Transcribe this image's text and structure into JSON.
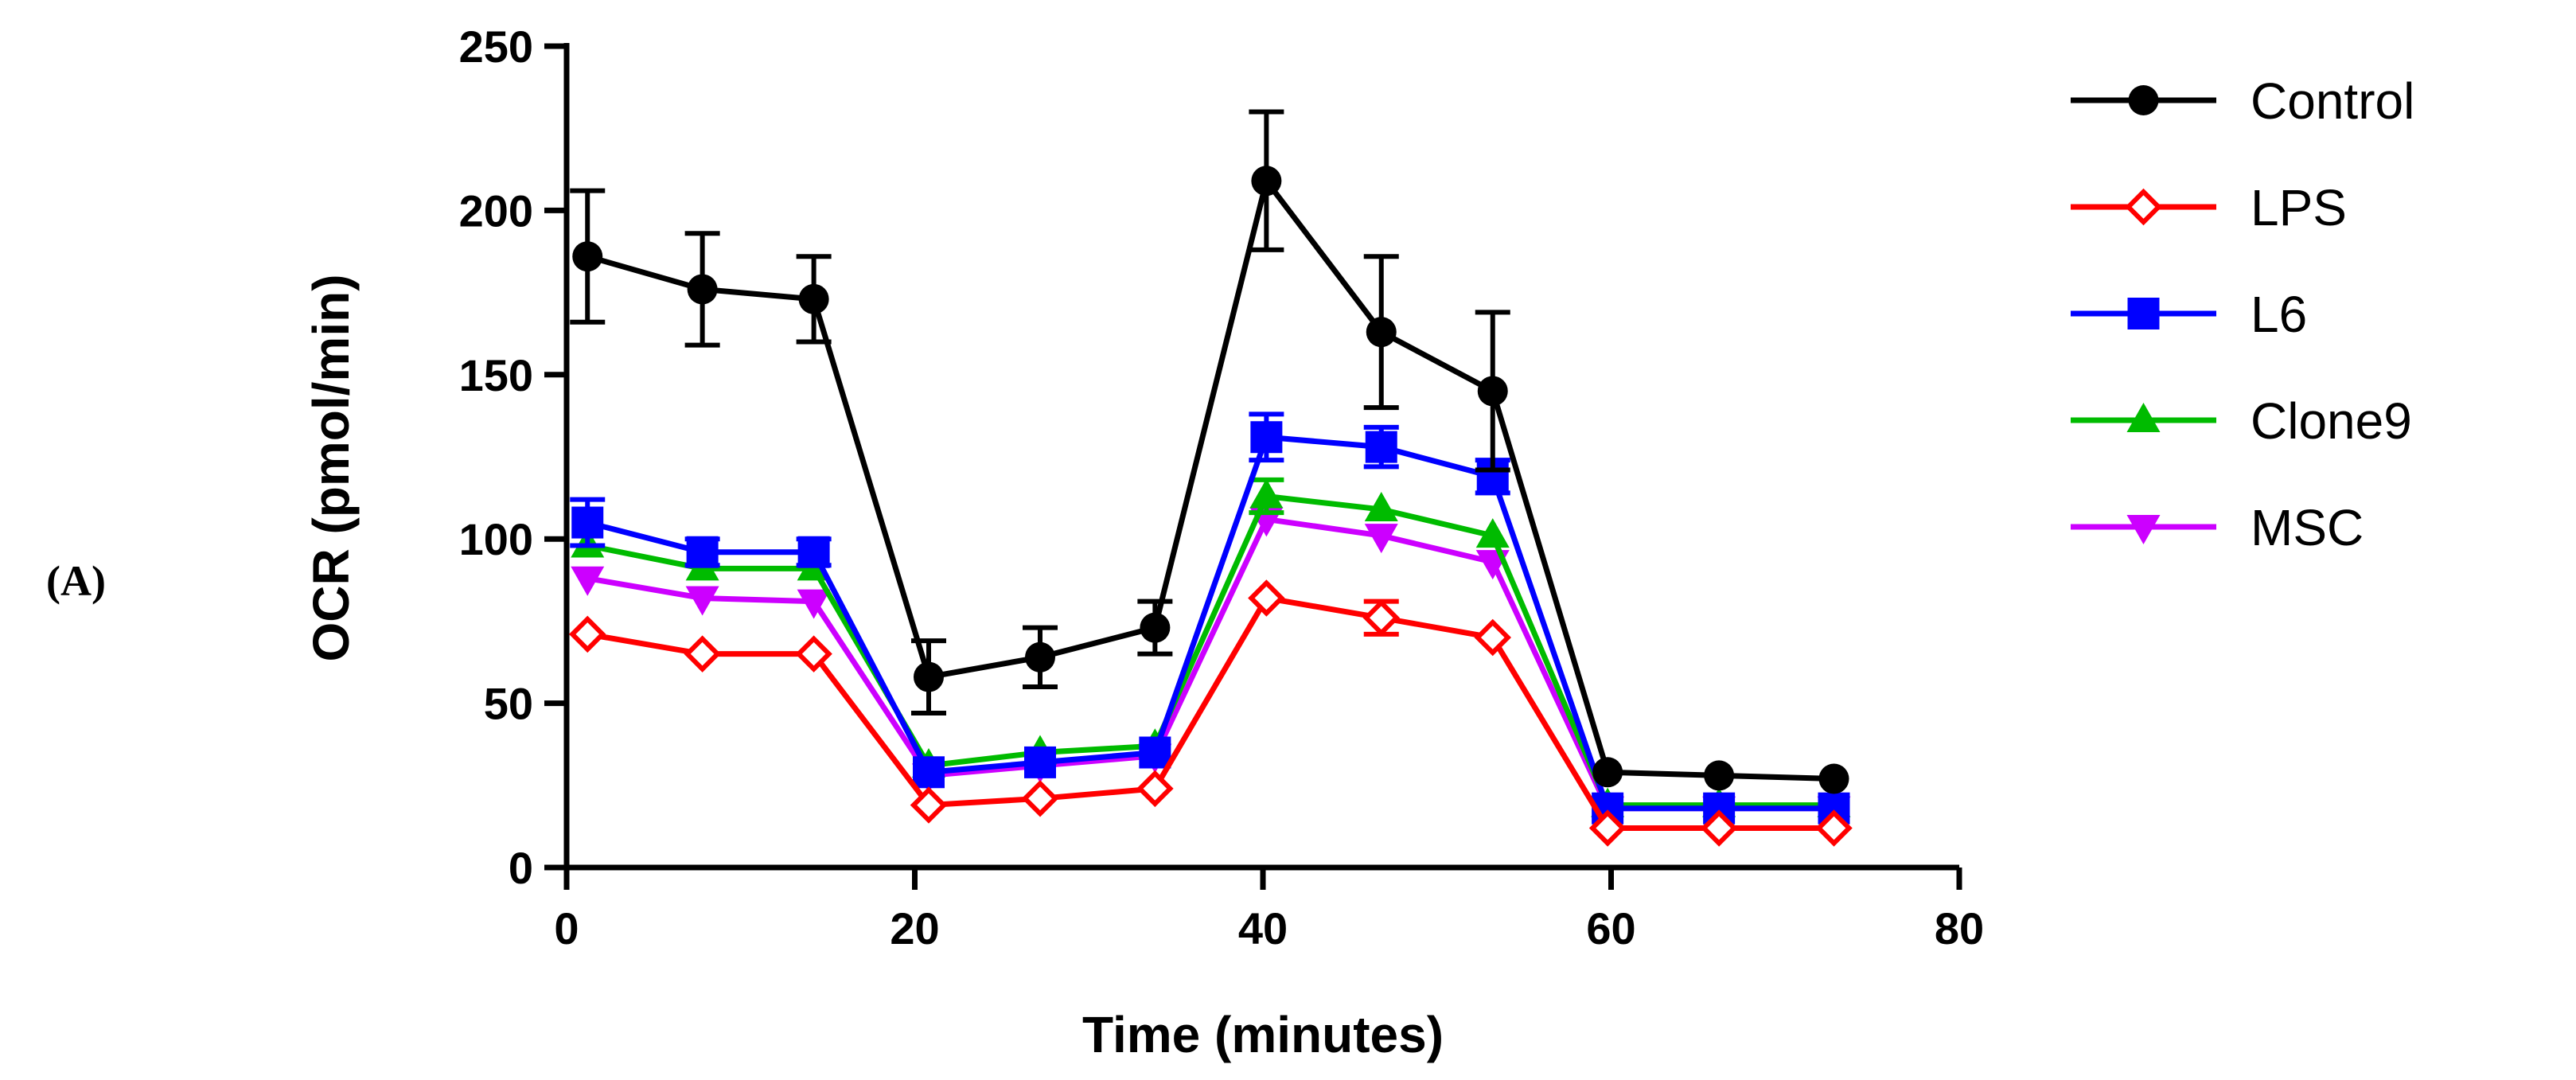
{
  "panel_label": "(A)",
  "chart_data": {
    "type": "line",
    "title": "",
    "xlabel": "Time (minutes)",
    "ylabel": "OCR (pmol/min)",
    "xlim": [
      0,
      80
    ],
    "ylim": [
      0,
      250
    ],
    "xticks": [
      0,
      20,
      40,
      60,
      80
    ],
    "yticks": [
      0,
      50,
      100,
      150,
      200,
      250
    ],
    "x": [
      1.2,
      7.8,
      14.2,
      20.8,
      27.2,
      33.8,
      40.2,
      46.8,
      53.2,
      59.8,
      66.2,
      72.8
    ],
    "legend_position": "right",
    "series": [
      {
        "name": "Control",
        "color": "#000000",
        "marker": "circle",
        "values": [
          186,
          176,
          173,
          58,
          64,
          73,
          209,
          163,
          145,
          29,
          28,
          27
        ],
        "errors": [
          20,
          17,
          13,
          11,
          9,
          8,
          21,
          23,
          24,
          0,
          0,
          0
        ]
      },
      {
        "name": "LPS",
        "color": "#ff0000",
        "marker": "diamond-open",
        "values": [
          71,
          65,
          65,
          19,
          21,
          24,
          82,
          76,
          70,
          12,
          12,
          12
        ],
        "errors": [
          0,
          0,
          0,
          0,
          0,
          0,
          0,
          5,
          0,
          0,
          0,
          0
        ]
      },
      {
        "name": "L6",
        "color": "#0000ff",
        "marker": "square",
        "values": [
          105,
          96,
          96,
          29,
          32,
          35,
          131,
          128,
          119,
          18,
          18,
          18
        ],
        "errors": [
          7,
          4,
          4,
          0,
          0,
          0,
          7,
          6,
          5,
          0,
          0,
          0
        ]
      },
      {
        "name": "Clone9",
        "color": "#00bb00",
        "marker": "triangle-up",
        "values": [
          98,
          91,
          91,
          31,
          35,
          37,
          113,
          109,
          101,
          19,
          19,
          19
        ],
        "errors": [
          0,
          0,
          0,
          0,
          0,
          0,
          5,
          0,
          0,
          0,
          0,
          0
        ]
      },
      {
        "name": "MSC",
        "color": "#cc00ff",
        "marker": "triangle-down",
        "values": [
          88,
          82,
          81,
          28,
          31,
          34,
          106,
          101,
          93,
          18,
          18,
          18
        ],
        "errors": [
          0,
          0,
          0,
          0,
          0,
          0,
          0,
          0,
          0,
          0,
          0,
          0
        ]
      }
    ]
  }
}
